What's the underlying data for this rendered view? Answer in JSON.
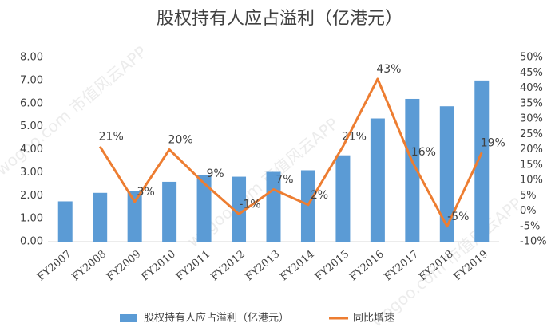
{
  "chart_data": {
    "type": "bar_line",
    "title": "股权持有人应占溢利（亿港元）",
    "watermark": "wogoo.com 市值风云APP",
    "categories": [
      "FY2007",
      "FY2008",
      "FY2009",
      "FY2010",
      "FY2011",
      "FY2012",
      "FY2013",
      "FY2014",
      "FY2015",
      "FY2016",
      "FY2017",
      "FY2018",
      "FY2019"
    ],
    "series": [
      {
        "name": "股权持有人应占溢利（亿港元）",
        "type": "bar",
        "color": "#5b9bd5",
        "values": [
          1.75,
          2.12,
          2.2,
          2.6,
          2.88,
          2.82,
          3.03,
          3.1,
          3.75,
          5.35,
          6.2,
          5.88,
          7.0
        ]
      },
      {
        "name": "同比增速",
        "type": "line",
        "color": "#ed7d31",
        "axis": "y2",
        "values": [
          null,
          21,
          3,
          20,
          9,
          -1,
          7,
          2,
          21,
          43,
          16,
          -5,
          19
        ],
        "value_labels": [
          null,
          "21%",
          "3%",
          "20%",
          "9%",
          "-1%",
          "7%",
          "2%",
          "21%",
          "43%",
          "16%",
          "-5%",
          "19%"
        ]
      }
    ],
    "ylim": [
      0,
      8
    ],
    "yticks": [
      {
        "value": 0,
        "label": "0.00"
      },
      {
        "value": 1,
        "label": "1.00"
      },
      {
        "value": 2,
        "label": "2.00"
      },
      {
        "value": 3,
        "label": "3.00"
      },
      {
        "value": 4,
        "label": "4.00"
      },
      {
        "value": 5,
        "label": "5.00"
      },
      {
        "value": 6,
        "label": "6.00"
      },
      {
        "value": 7,
        "label": "7.00"
      },
      {
        "value": 8,
        "label": "8.00"
      }
    ],
    "y2lim": [
      -10,
      50
    ],
    "y2ticks": [
      {
        "value": -10,
        "label": "-10%"
      },
      {
        "value": -5,
        "label": "-5%"
      },
      {
        "value": 0,
        "label": "0%"
      },
      {
        "value": 5,
        "label": "5%"
      },
      {
        "value": 10,
        "label": "10%"
      },
      {
        "value": 15,
        "label": "15%"
      },
      {
        "value": 20,
        "label": "20%"
      },
      {
        "value": 25,
        "label": "25%"
      },
      {
        "value": 30,
        "label": "30%"
      },
      {
        "value": 35,
        "label": "35%"
      },
      {
        "value": 40,
        "label": "40%"
      },
      {
        "value": 45,
        "label": "45%"
      },
      {
        "value": 50,
        "label": "50%"
      }
    ],
    "legend": "bottom"
  }
}
